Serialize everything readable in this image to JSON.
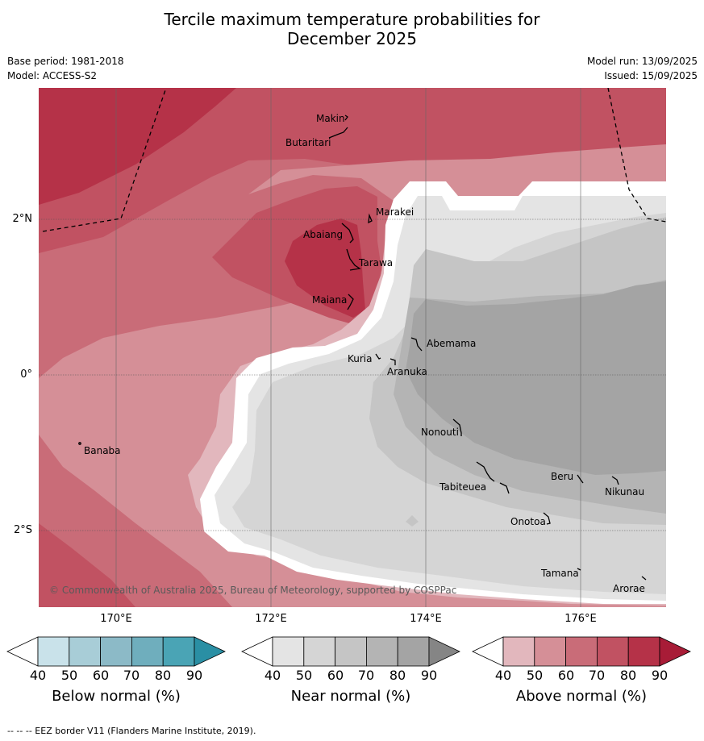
{
  "title_line1": "Tercile maximum temperature probabilities for",
  "title_line2": "December 2025",
  "base_period": "Base period: 1981-2018",
  "model": "Model: ACCESS-S2",
  "model_run": "Model run: 13/09/2025",
  "issued": "Issued: 15/09/2025",
  "lat_labels": [
    "2°N",
    "0°",
    "2°S"
  ],
  "lon_labels": [
    "170°E",
    "172°E",
    "174°E",
    "176°E"
  ],
  "places": [
    "Makin",
    "Butaritari",
    "Marakei",
    "Abaiang",
    "Tarawa",
    "Maiana",
    "Abemama",
    "Kuria",
    "Aranuka",
    "Banaba",
    "Nonouti",
    "Tabiteuea",
    "Beru",
    "Nikunau",
    "Onotoa",
    "Tamana",
    "Arorae"
  ],
  "copyright": "© Commonwealth of Australia 2025, Bureau of Meteorology, supported by COSPPac",
  "colorbars": [
    {
      "label": "Below normal (%)",
      "ticks": [
        "40",
        "50",
        "60",
        "70",
        "80",
        "90"
      ],
      "colors": [
        "#ffffff",
        "#c9e2ea",
        "#a8cdd7",
        "#8cbac7",
        "#6faebd",
        "#4aa4b5",
        "#2a8fa4"
      ]
    },
    {
      "label": "Near normal (%)",
      "ticks": [
        "40",
        "50",
        "60",
        "70",
        "80",
        "90"
      ],
      "colors": [
        "#ffffff",
        "#e4e4e4",
        "#d5d5d5",
        "#c5c5c5",
        "#b4b4b4",
        "#a4a4a4",
        "#858585"
      ]
    },
    {
      "label": "Above normal (%)",
      "ticks": [
        "40",
        "50",
        "60",
        "70",
        "80",
        "90"
      ],
      "colors": [
        "#ffffff",
        "#e2b7bd",
        "#d58f97",
        "#c96c78",
        "#c15262",
        "#b53248",
        "#a81c37"
      ]
    }
  ],
  "footnote": "--  --  -- EEZ border V11 (Flanders Marine Institute, 2019)."
}
